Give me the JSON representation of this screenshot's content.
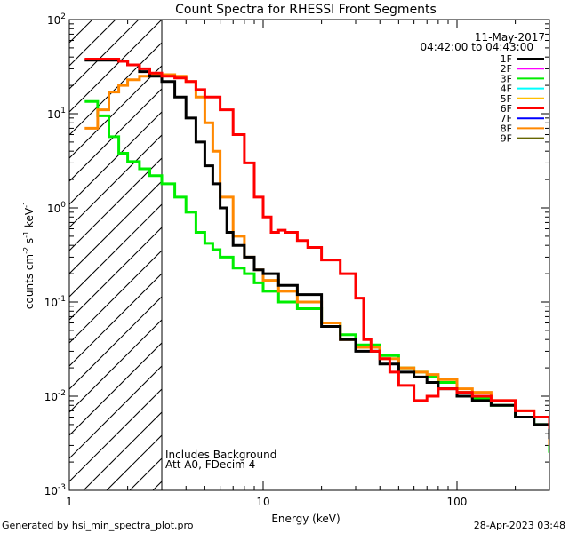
{
  "chart_data": {
    "type": "line",
    "title": "Count Spectra for RHESSI Front Segments",
    "xlabel": "Energy (keV)",
    "ylabel": {
      "base": "counts cm",
      "e1": "-2",
      "mid": " s",
      "e2": "-1",
      "end": " keV",
      "e3": "-1"
    },
    "xscale": "log",
    "yscale": "log",
    "xlim": [
      1,
      300
    ],
    "ylim": [
      0.001,
      100
    ],
    "x_ticks": [
      {
        "value": 1,
        "label": "1"
      },
      {
        "value": 10,
        "label": "10"
      },
      {
        "value": 100,
        "label": "100"
      }
    ],
    "y_ticks": [
      {
        "value": 100,
        "base": "10",
        "exp": "2"
      },
      {
        "value": 10,
        "base": "10",
        "exp": "1"
      },
      {
        "value": 1,
        "base": "10",
        "exp": "0"
      },
      {
        "value": 0.1,
        "base": "10",
        "exp": "-1"
      },
      {
        "value": 0.01,
        "base": "10",
        "exp": "-2"
      },
      {
        "value": 0.001,
        "base": "10",
        "exp": "-3"
      }
    ],
    "hatched_region_max_energy": 3,
    "date": "11-May-2017",
    "time_range": "04:42:00 to 04:43:00",
    "annotation_lines": [
      "Includes Background",
      "Att A0, FDecim 4"
    ],
    "legend": [
      {
        "name": "1F",
        "color": "#000000"
      },
      {
        "name": "2F",
        "color": "#ff00ff"
      },
      {
        "name": "3F",
        "color": "#00ee00"
      },
      {
        "name": "4F",
        "color": "#00ffff"
      },
      {
        "name": "5F",
        "color": "#ffc000"
      },
      {
        "name": "6F",
        "color": "#ff0000"
      },
      {
        "name": "7F",
        "color": "#0000ff"
      },
      {
        "name": "8F",
        "color": "#ff8800"
      },
      {
        "name": "9F",
        "color": "#666600"
      }
    ],
    "series": [
      {
        "name": "3F",
        "color": "#00ee00",
        "x": [
          1.2,
          1.4,
          1.6,
          1.8,
          2.0,
          2.3,
          2.6,
          3.0,
          3.5,
          4.0,
          4.5,
          5.0,
          5.5,
          6.0,
          7.0,
          8.0,
          9.0,
          10,
          12,
          15,
          20,
          25,
          30,
          40,
          50,
          60,
          70,
          80,
          100,
          120,
          150,
          200,
          250,
          300
        ],
        "y": [
          13.5,
          9.5,
          5.7,
          3.8,
          3.1,
          2.6,
          2.2,
          1.8,
          1.3,
          0.9,
          0.55,
          0.42,
          0.36,
          0.3,
          0.23,
          0.2,
          0.16,
          0.13,
          0.1,
          0.085,
          0.06,
          0.045,
          0.035,
          0.027,
          0.02,
          0.018,
          0.016,
          0.014,
          0.011,
          0.0095,
          0.008,
          0.006,
          0.005,
          0.0025
        ]
      },
      {
        "name": "8F",
        "color": "#ff8800",
        "x": [
          1.2,
          1.4,
          1.6,
          1.8,
          2.0,
          2.3,
          2.6,
          3.0,
          3.5,
          4.0,
          4.5,
          5.0,
          5.5,
          6.0,
          7.0,
          8.0,
          9.0,
          10,
          12,
          15,
          20,
          25,
          30,
          40,
          50,
          60,
          70,
          80,
          100,
          120,
          150,
          200,
          250,
          300
        ],
        "y": [
          7,
          11,
          17,
          20,
          23,
          25,
          26,
          26,
          25,
          22,
          15,
          8,
          4,
          1.3,
          0.5,
          0.3,
          0.22,
          0.17,
          0.13,
          0.1,
          0.06,
          0.04,
          0.033,
          0.025,
          0.02,
          0.018,
          0.017,
          0.015,
          0.012,
          0.011,
          0.009,
          0.007,
          0.006,
          0.003
        ]
      },
      {
        "name": "1F",
        "color": "#000000",
        "x": [
          1.2,
          1.4,
          1.6,
          1.8,
          2.0,
          2.3,
          2.6,
          3.0,
          3.5,
          4.0,
          4.5,
          5.0,
          5.5,
          6.0,
          6.5,
          7.0,
          8.0,
          9.0,
          10,
          12,
          15,
          20,
          25,
          30,
          40,
          50,
          60,
          70,
          80,
          100,
          120,
          150,
          200,
          250,
          300
        ],
        "y": [
          37,
          37,
          37,
          36,
          33,
          28,
          25,
          22,
          15,
          9,
          5,
          2.8,
          1.8,
          1.0,
          0.55,
          0.4,
          0.3,
          0.22,
          0.2,
          0.15,
          0.12,
          0.055,
          0.04,
          0.03,
          0.022,
          0.018,
          0.016,
          0.014,
          0.012,
          0.01,
          0.009,
          0.008,
          0.006,
          0.005,
          0.0035
        ]
      },
      {
        "name": "6F",
        "color": "#ff0000",
        "x": [
          1.2,
          1.4,
          1.6,
          1.8,
          2.0,
          2.3,
          2.6,
          3.0,
          3.5,
          4.0,
          4.5,
          5.0,
          6.0,
          7.0,
          8.0,
          9.0,
          10,
          11,
          12,
          13,
          15,
          17,
          20,
          25,
          30,
          33,
          36,
          40,
          45,
          50,
          60,
          70,
          80,
          100,
          120,
          150,
          200,
          250,
          300
        ],
        "y": [
          38,
          38,
          38,
          36,
          33,
          30,
          27,
          25,
          24,
          22,
          18,
          15,
          11,
          6,
          3,
          1.3,
          0.8,
          0.55,
          0.58,
          0.55,
          0.45,
          0.38,
          0.28,
          0.2,
          0.11,
          0.04,
          0.03,
          0.025,
          0.018,
          0.013,
          0.009,
          0.01,
          0.012,
          0.011,
          0.01,
          0.009,
          0.007,
          0.006,
          0.0045
        ]
      }
    ]
  },
  "footer": {
    "generated_by": "Generated by hsi_min_spectra_plot.pro",
    "timestamp": "28-Apr-2023 03:48"
  }
}
